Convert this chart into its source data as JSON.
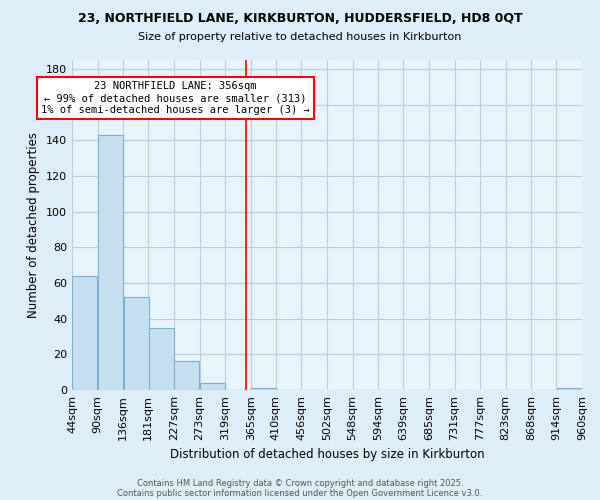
{
  "title_line1": "23, NORTHFIELD LANE, KIRKBURTON, HUDDERSFIELD, HD8 0QT",
  "title_line2": "Size of property relative to detached houses in Kirkburton",
  "xlabel": "Distribution of detached houses by size in Kirkburton",
  "ylabel": "Number of detached properties",
  "bar_edges": [
    44,
    90,
    136,
    181,
    227,
    273,
    319,
    365,
    410,
    456,
    502,
    548,
    594,
    639,
    685,
    731,
    777,
    823,
    868,
    914,
    960
  ],
  "bar_heights": [
    64,
    143,
    52,
    35,
    16,
    4,
    0,
    1,
    0,
    0,
    0,
    0,
    0,
    0,
    0,
    0,
    0,
    0,
    0,
    1
  ],
  "bar_color": "#c5dff0",
  "bar_edgecolor": "#7ab0d4",
  "vline_x": 356,
  "vline_color": "red",
  "ylim": [
    0,
    185
  ],
  "xlim": [
    44,
    960
  ],
  "annotation_title": "23 NORTHFIELD LANE: 356sqm",
  "annotation_line2": "← 99% of detached houses are smaller (313)",
  "annotation_line3": "1% of semi-detached houses are larger (3) →",
  "footer_line1": "Contains HM Land Registry data © Crown copyright and database right 2025.",
  "footer_line2": "Contains public sector information licensed under the Open Government Licence v3.0.",
  "bg_color": "#ddeef8",
  "plot_bg_color": "#e8f4fb",
  "tick_labels": [
    "44sqm",
    "90sqm",
    "136sqm",
    "181sqm",
    "227sqm",
    "273sqm",
    "319sqm",
    "365sqm",
    "410sqm",
    "456sqm",
    "502sqm",
    "548sqm",
    "594sqm",
    "639sqm",
    "685sqm",
    "731sqm",
    "777sqm",
    "823sqm",
    "868sqm",
    "914sqm",
    "960sqm"
  ],
  "yticks": [
    0,
    20,
    40,
    60,
    80,
    100,
    120,
    140,
    160,
    180
  ]
}
